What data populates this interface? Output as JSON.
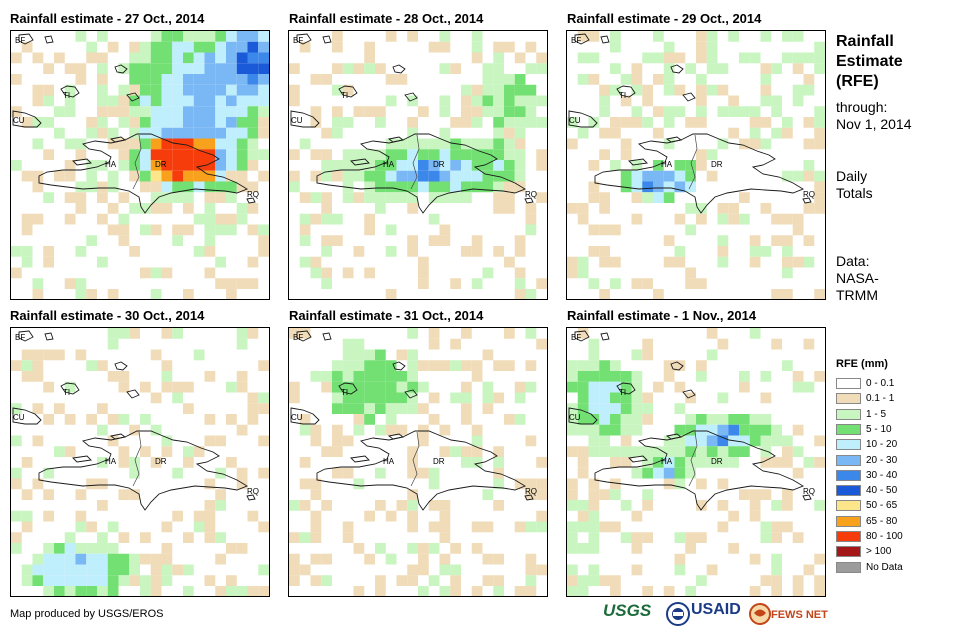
{
  "panels": [
    {
      "title": "Rainfall estimate - 27 Oct., 2014",
      "scenario": "heavy"
    },
    {
      "title": "Rainfall estimate - 28 Oct., 2014",
      "scenario": "moderate"
    },
    {
      "title": "Rainfall estimate - 29 Oct., 2014",
      "scenario": "light"
    },
    {
      "title": "Rainfall estimate - 30 Oct., 2014",
      "scenario": "south"
    },
    {
      "title": "Rainfall estimate - 31 Oct., 2014",
      "scenario": "dry"
    },
    {
      "title": "Rainfall estimate - 1 Nov., 2014",
      "scenario": "nov1"
    }
  ],
  "map_labels": {
    "bf": "BF",
    "ti": "TI",
    "cu": "CU",
    "ha": "HA",
    "dr": "DR",
    "rq": "RQ"
  },
  "sidebar": {
    "title_line1": "Rainfall",
    "title_line2": "Estimate",
    "title_line3": "(RFE)",
    "through_label": "through:",
    "through_date": "Nov 1, 2014",
    "totals_line1": "Daily",
    "totals_line2": "Totals",
    "data_label": "Data:",
    "data_source_line1": "NASA-",
    "data_source_line2": "TRMM"
  },
  "legend": {
    "title": "RFE (mm)",
    "items": [
      {
        "label": "0 - 0.1",
        "color": "#ffffff"
      },
      {
        "label": "0.1 - 1",
        "color": "#f0dcb8"
      },
      {
        "label": "1 - 5",
        "color": "#c8f5c0"
      },
      {
        "label": "5 - 10",
        "color": "#72e072"
      },
      {
        "label": "10 - 20",
        "color": "#bfeefc"
      },
      {
        "label": "20 - 30",
        "color": "#7ab8f5"
      },
      {
        "label": "30 - 40",
        "color": "#3c88ea"
      },
      {
        "label": "40 - 50",
        "color": "#1a5ad8"
      },
      {
        "label": "50 - 65",
        "color": "#fce58a"
      },
      {
        "label": "65 - 80",
        "color": "#f7a11c"
      },
      {
        "label": "80 - 100",
        "color": "#f53c0a"
      },
      {
        "label": "> 100",
        "color": "#a41818"
      },
      {
        "label": "No Data",
        "color": "#9c9c9c"
      }
    ]
  },
  "credit": "Map produced by USGS/EROS",
  "logos": {
    "usgs": "USGS",
    "usaid": "USAID",
    "fews": "FEWS NET"
  }
}
